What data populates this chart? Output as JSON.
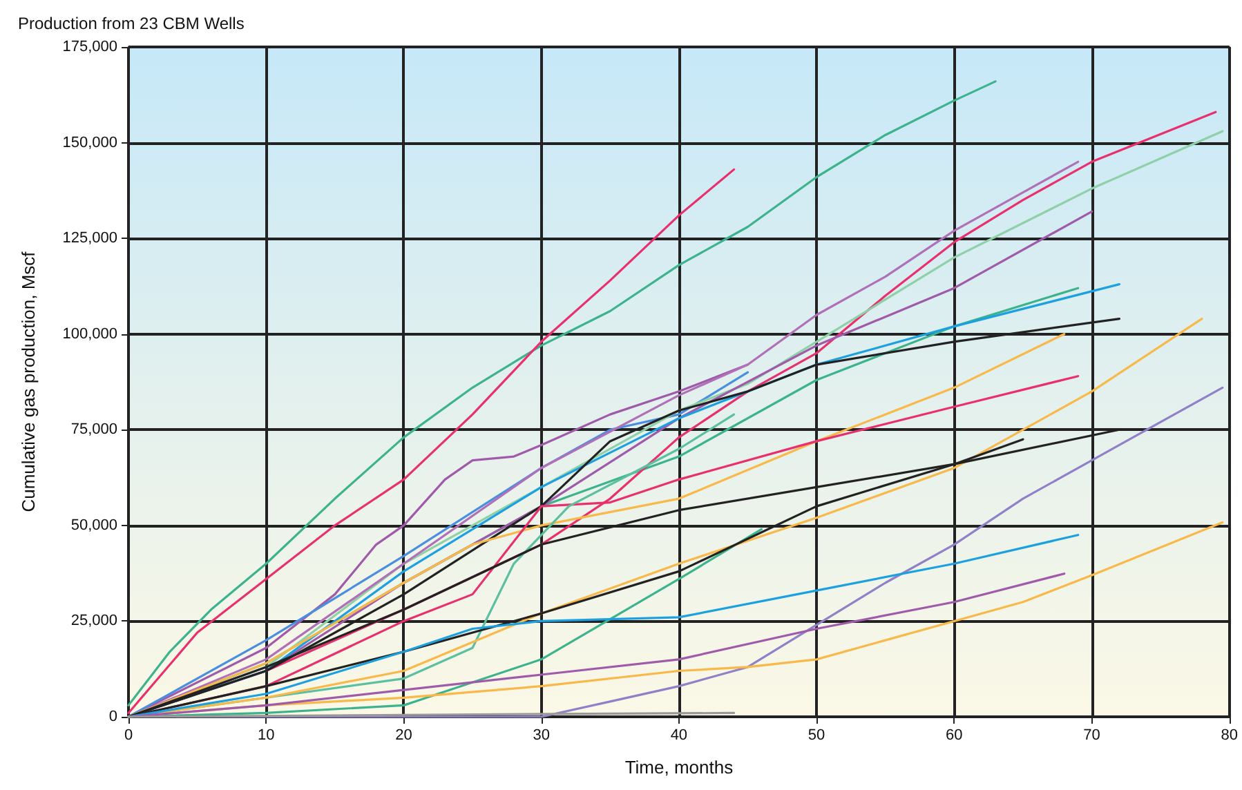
{
  "chart_data": {
    "type": "line",
    "title": "Production from 23 CBM Wells",
    "xlabel": "Time, months",
    "ylabel": "Cumulative gas production, Mscf",
    "xlim": [
      0,
      80
    ],
    "xticks": [
      0,
      10,
      20,
      30,
      40,
      50,
      60,
      70,
      80
    ],
    "ylim": [
      0,
      175000
    ],
    "yticks": [
      {
        "value": 0,
        "label": "0"
      },
      {
        "value": 25000,
        "label": "25,000"
      },
      {
        "value": 50000,
        "label": "50,000"
      },
      {
        "value": 75000,
        "label": "75,000"
      },
      {
        "value": 100000,
        "label": "100,000"
      },
      {
        "value": 125000,
        "label": "125,000"
      },
      {
        "value": 150000,
        "label": "150,000"
      },
      {
        "value": 175000,
        "label": "175,000"
      }
    ],
    "grid": true,
    "marker": "none",
    "line_style": "solid",
    "series": [
      {
        "color": "#3cb38c",
        "x": [
          0,
          3,
          6,
          10,
          15,
          20,
          25,
          30,
          35,
          40,
          45,
          50,
          55,
          60,
          63
        ],
        "values": [
          3000,
          17000,
          28000,
          40000,
          57000,
          73000,
          86000,
          97000,
          106000,
          118000,
          128000,
          141000,
          152000,
          161000,
          166000
        ]
      },
      {
        "color": "#e8306e",
        "x": [
          0,
          5,
          10,
          15,
          20,
          25,
          30,
          35,
          40,
          44
        ],
        "values": [
          1000,
          22000,
          36000,
          50000,
          62000,
          79000,
          98000,
          114000,
          131000,
          143000
        ]
      },
      {
        "color": "#a05aaa",
        "x": [
          0,
          10,
          15,
          18,
          20,
          23,
          25,
          28,
          30,
          35,
          40,
          45
        ],
        "values": [
          0,
          18000,
          32000,
          45000,
          50000,
          62000,
          67000,
          68000,
          71000,
          79000,
          85000,
          92000
        ]
      },
      {
        "color": "#4a8ee0",
        "x": [
          0,
          10,
          20,
          30,
          35,
          40,
          45
        ],
        "values": [
          0,
          20000,
          42000,
          65000,
          75000,
          79000,
          90000
        ]
      },
      {
        "color": "#3cb38c",
        "x": [
          0,
          10,
          20,
          30,
          40,
          50,
          60,
          69
        ],
        "values": [
          0,
          14000,
          35000,
          55000,
          68000,
          88000,
          102000,
          112000
        ]
      },
      {
        "color": "#e8306e",
        "x": [
          0,
          10,
          20,
          30,
          35,
          40,
          45,
          50,
          55,
          60,
          65,
          70,
          79
        ],
        "values": [
          0,
          12000,
          28000,
          45000,
          57000,
          73000,
          85000,
          95000,
          110000,
          124000,
          135000,
          145000,
          158000
        ]
      },
      {
        "color": "#8fd0a8",
        "x": [
          0,
          10,
          20,
          30,
          40,
          45,
          50,
          60,
          70,
          79.5
        ],
        "values": [
          0,
          13000,
          40000,
          60000,
          80000,
          87000,
          98000,
          120000,
          138000,
          153000
        ]
      },
      {
        "color": "#b070b8",
        "x": [
          0,
          10,
          20,
          30,
          40,
          45,
          50,
          55,
          60,
          65,
          69
        ],
        "values": [
          0,
          15000,
          40000,
          65000,
          84000,
          92000,
          105000,
          115000,
          127000,
          137000,
          145000
        ]
      },
      {
        "color": "#a05aaa",
        "x": [
          0,
          10,
          20,
          30,
          40,
          50,
          60,
          70
        ],
        "values": [
          0,
          12000,
          35000,
          55000,
          78000,
          97000,
          112000,
          132000
        ]
      },
      {
        "color": "#1ca0e0",
        "x": [
          0,
          10,
          20,
          30,
          40,
          50,
          60,
          72
        ],
        "values": [
          0,
          12000,
          38000,
          60000,
          78000,
          92000,
          102000,
          113000
        ]
      },
      {
        "color": "#222222",
        "x": [
          0,
          10,
          20,
          30,
          35,
          40,
          45,
          50,
          60,
          72
        ],
        "values": [
          0,
          12000,
          32000,
          55000,
          72000,
          80000,
          85000,
          92000,
          98000,
          104000
        ]
      },
      {
        "color": "#f8b84a",
        "x": [
          0,
          10,
          20,
          25,
          30,
          40,
          50,
          60,
          68
        ],
        "values": [
          0,
          14000,
          35000,
          45000,
          50000,
          57000,
          72000,
          86000,
          100000
        ]
      },
      {
        "color": "#e8306e",
        "x": [
          0,
          10,
          20,
          25,
          30,
          35,
          40,
          50,
          60,
          69
        ],
        "values": [
          0,
          8000,
          25000,
          32000,
          55000,
          56000,
          62000,
          72000,
          81000,
          89000
        ]
      },
      {
        "color": "#3cb38c",
        "x": [
          0,
          10,
          20,
          30,
          40,
          46
        ],
        "values": [
          0,
          1000,
          3000,
          15000,
          36000,
          49000
        ]
      },
      {
        "color": "#5cc0a0",
        "x": [
          0,
          10,
          20,
          25,
          28,
          32,
          40,
          44
        ],
        "values": [
          0,
          5000,
          10000,
          18000,
          40000,
          55000,
          70000,
          79000
        ]
      },
      {
        "color": "#f8b84a",
        "x": [
          0,
          10,
          20,
          30,
          40,
          50,
          60,
          70,
          78
        ],
        "values": [
          0,
          5000,
          12000,
          27000,
          40000,
          52000,
          65000,
          85000,
          104000
        ]
      },
      {
        "color": "#222222",
        "x": [
          0,
          10,
          20,
          30,
          40,
          50,
          60,
          72
        ],
        "values": [
          0,
          13000,
          28000,
          45000,
          54000,
          60000,
          66000,
          75000
        ]
      },
      {
        "color": "#222222",
        "x": [
          0,
          10,
          20,
          30,
          40,
          50,
          60,
          65
        ],
        "values": [
          0,
          8000,
          17000,
          27000,
          38000,
          55000,
          66000,
          72500
        ]
      },
      {
        "color": "#9080c8",
        "x": [
          0,
          30,
          35,
          40,
          45,
          50,
          55,
          60,
          65,
          70,
          75,
          79.5
        ],
        "values": [
          0,
          0,
          4000,
          8000,
          13000,
          24000,
          35000,
          45000,
          57000,
          67000,
          77000,
          86000
        ]
      },
      {
        "color": "#f8b84a",
        "x": [
          0,
          10,
          20,
          30,
          40,
          45,
          50,
          55,
          60,
          65,
          70,
          79.5
        ],
        "values": [
          0,
          3000,
          5000,
          8000,
          12000,
          13000,
          15000,
          20000,
          25000,
          30000,
          37000,
          50800
        ]
      },
      {
        "color": "#1ca0e0",
        "x": [
          0,
          10,
          20,
          25,
          30,
          40,
          50,
          60,
          69
        ],
        "values": [
          0,
          6000,
          17000,
          23000,
          25000,
          26000,
          33000,
          40000,
          47500
        ]
      },
      {
        "color": "#a05aaa",
        "x": [
          0,
          10,
          20,
          30,
          40,
          50,
          60,
          68
        ],
        "values": [
          0,
          3000,
          7000,
          11000,
          15000,
          23000,
          30000,
          37400
        ]
      },
      {
        "color": "#999999",
        "x": [
          0,
          20,
          44
        ],
        "values": [
          0,
          500,
          1000
        ]
      }
    ]
  }
}
